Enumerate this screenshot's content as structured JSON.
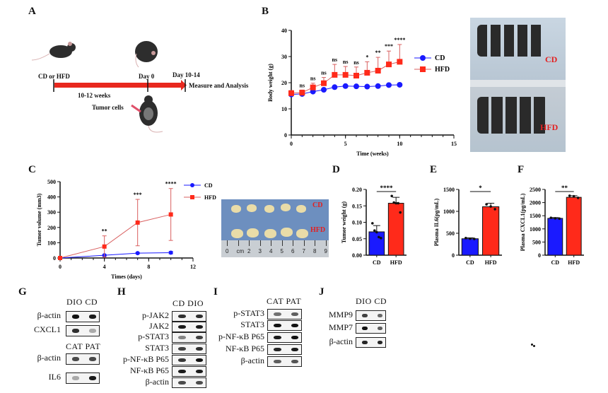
{
  "panels": {
    "a": "A",
    "b": "B",
    "c": "C",
    "d": "D",
    "e": "E",
    "f": "F",
    "g": "G",
    "h": "H",
    "i": "I",
    "j": "J"
  },
  "timeline": {
    "start": "CD or HFD",
    "duration": "10-12 weeks",
    "day0": "Day 0",
    "end": "Day  10-14",
    "measure": "Measure   and Analysis",
    "injection": "Tumor cells",
    "arrow_color": "#e8281e"
  },
  "mouse_photo": {
    "top_label": "CD",
    "bottom_label": "HFD"
  },
  "tumor_photo": {
    "top_label": "CD",
    "bottom_label": "HFD",
    "ruler_ticks": [
      "0",
      "cm",
      "2",
      "3",
      "4",
      "5",
      "6",
      "7",
      "8",
      "9"
    ]
  },
  "colors": {
    "cd": "#1a1aff",
    "hfd": "#ff2a1a",
    "hfd_line": "#d96060"
  },
  "chart_data": [
    {
      "id": "B",
      "type": "line",
      "xlabel": "Time (weeks)",
      "ylabel": "Body weight (g)",
      "xlim": [
        0,
        15
      ],
      "ylim": [
        0,
        40
      ],
      "xticks": [
        "0",
        "5",
        "10",
        "15"
      ],
      "yticks": [
        "0",
        "10",
        "20",
        "30",
        "40"
      ],
      "legend": "right",
      "x": [
        0,
        1,
        2,
        3,
        4,
        5,
        6,
        7,
        8,
        9,
        10
      ],
      "series": [
        {
          "name": "CD",
          "values": [
            15.5,
            15.7,
            16.6,
            17.3,
            18.3,
            18.7,
            18.6,
            18.5,
            18.7,
            19.1,
            19.2
          ],
          "marker": "circle"
        },
        {
          "name": "HFD",
          "values": [
            16,
            16.2,
            18.2,
            19.8,
            23,
            23,
            22.7,
            23.8,
            24.6,
            27,
            28
          ],
          "error": [
            1,
            1,
            1.6,
            2.2,
            4,
            3.2,
            3.3,
            4.2,
            5.1,
            5.1,
            6.6
          ],
          "marker": "square"
        }
      ],
      "annotations": [
        {
          "x": 1,
          "text": "ns"
        },
        {
          "x": 2,
          "text": "ns"
        },
        {
          "x": 3,
          "text": "ns"
        },
        {
          "x": 4,
          "text": "ns"
        },
        {
          "x": 5,
          "text": "ns"
        },
        {
          "x": 6,
          "text": "ns"
        },
        {
          "x": 7,
          "text": "*"
        },
        {
          "x": 8,
          "text": "**"
        },
        {
          "x": 9,
          "text": "***"
        },
        {
          "x": 10,
          "text": "****"
        }
      ]
    },
    {
      "id": "C",
      "type": "line",
      "xlabel": "Times (days)",
      "ylabel": "Tumor volume (mm3)",
      "xlim": [
        0,
        12
      ],
      "ylim": [
        0,
        500
      ],
      "xticks": [
        "0",
        "4",
        "8",
        "12"
      ],
      "yticks": [
        "0",
        "100",
        "200",
        "300",
        "400",
        "500"
      ],
      "legend": "right",
      "x": [
        0,
        4,
        7,
        10
      ],
      "series": [
        {
          "name": "CD",
          "values": [
            0,
            18,
            32,
            35
          ],
          "error": [
            0,
            5,
            4,
            8
          ],
          "marker": "circle"
        },
        {
          "name": "HFD",
          "values": [
            0,
            75,
            232,
            285
          ],
          "error": [
            0,
            70,
            152,
            170
          ],
          "marker": "square"
        }
      ],
      "annotations": [
        {
          "x": 4,
          "text": "**"
        },
        {
          "x": 7,
          "text": "***"
        },
        {
          "x": 10,
          "text": "****"
        }
      ]
    },
    {
      "id": "D",
      "type": "bar",
      "ylabel": "Tumor weight (g)",
      "categories": [
        "CD",
        "HFD"
      ],
      "values": [
        0.071,
        0.158
      ],
      "error": [
        0.019,
        0.018
      ],
      "points": [
        [
          0.097,
          0.075,
          0.07,
          0.055,
          0.052
        ],
        [
          0.18,
          0.16,
          0.158,
          0.158,
          0.13
        ]
      ],
      "ylim": [
        0,
        0.2
      ],
      "yticks": [
        "0.00",
        "0.05",
        "0.10",
        "0.15",
        "0.20"
      ],
      "significance": "****"
    },
    {
      "id": "E",
      "type": "bar",
      "ylabel": "Plasma IL6(pg/mL)",
      "categories": [
        "CD",
        "HFD"
      ],
      "values": [
        375,
        1105
      ],
      "error": [
        20,
        80
      ],
      "points": [
        [
          390,
          375,
          370
        ],
        [
          1160,
          1110,
          1050
        ]
      ],
      "ylim": [
        0,
        1500
      ],
      "yticks": [
        "0",
        "500",
        "1000",
        "1500"
      ],
      "significance": "*"
    },
    {
      "id": "F",
      "type": "bar",
      "ylabel": "Plasma CXCL1(pg/mL)",
      "categories": [
        "CD",
        "HFD"
      ],
      "values": [
        1400,
        2200
      ],
      "error": [
        30,
        60
      ],
      "points": [
        [
          1420,
          1400,
          1390
        ],
        [
          2260,
          2240,
          2180
        ]
      ],
      "ylim": [
        0,
        2500
      ],
      "yticks": [
        "0",
        "500",
        "1000",
        "1500",
        "2000",
        "2500"
      ],
      "significance": "**"
    }
  ],
  "blots": {
    "g": {
      "groups": [
        {
          "header": "DIO  CD",
          "rows": [
            {
              "label": "β-actin",
              "bands": [
                1,
                0.95
              ]
            },
            {
              "label": "CXCL1",
              "bands": [
                0.85,
                0.2
              ]
            }
          ]
        },
        {
          "header": "CAT  PAT",
          "rows": [
            {
              "label": "β-actin",
              "bands": [
                0.7,
                0.7
              ]
            },
            {
              "label": "IL6",
              "bands": [
                0.2,
                0.95
              ]
            }
          ]
        }
      ]
    },
    "h": {
      "header": "CD  DIO",
      "rows": [
        {
          "label": "p-JAK2",
          "bands": [
            0.85,
            0.85
          ]
        },
        {
          "label": "JAK2",
          "bands": [
            0.95,
            0.95
          ]
        },
        {
          "label": "p-STAT3",
          "bands": [
            0.4,
            0.75
          ]
        },
        {
          "label": "STAT3",
          "bands": [
            0.75,
            0.85
          ]
        },
        {
          "label": "p-NF-κB P65",
          "bands": [
            0.8,
            1
          ]
        },
        {
          "label": "NF-κB P65",
          "bands": [
            0.95,
            0.95
          ]
        },
        {
          "label": "β-actin",
          "bands": [
            0.7,
            0.7
          ]
        }
      ]
    },
    "i": {
      "header": "CAT  PAT",
      "rows": [
        {
          "label": "p-STAT3",
          "bands": [
            0.5,
            0.6
          ]
        },
        {
          "label": "STAT3",
          "bands": [
            1,
            1
          ]
        },
        {
          "label": "p-NF-κB P65",
          "bands": [
            0.95,
            1
          ]
        },
        {
          "label": "NF-κB P65",
          "bands": [
            0.9,
            0.95
          ]
        },
        {
          "label": "β-actin",
          "bands": [
            0.6,
            0.65
          ]
        }
      ]
    },
    "j": {
      "header": "DIO  CD",
      "rows": [
        {
          "label": "MMP9",
          "bands": [
            0.75,
            0.55
          ]
        },
        {
          "label": "MMP7",
          "bands": [
            1,
            0.6
          ]
        },
        {
          "label": "β-actin",
          "bands": [
            0.9,
            0.9
          ]
        }
      ]
    }
  }
}
